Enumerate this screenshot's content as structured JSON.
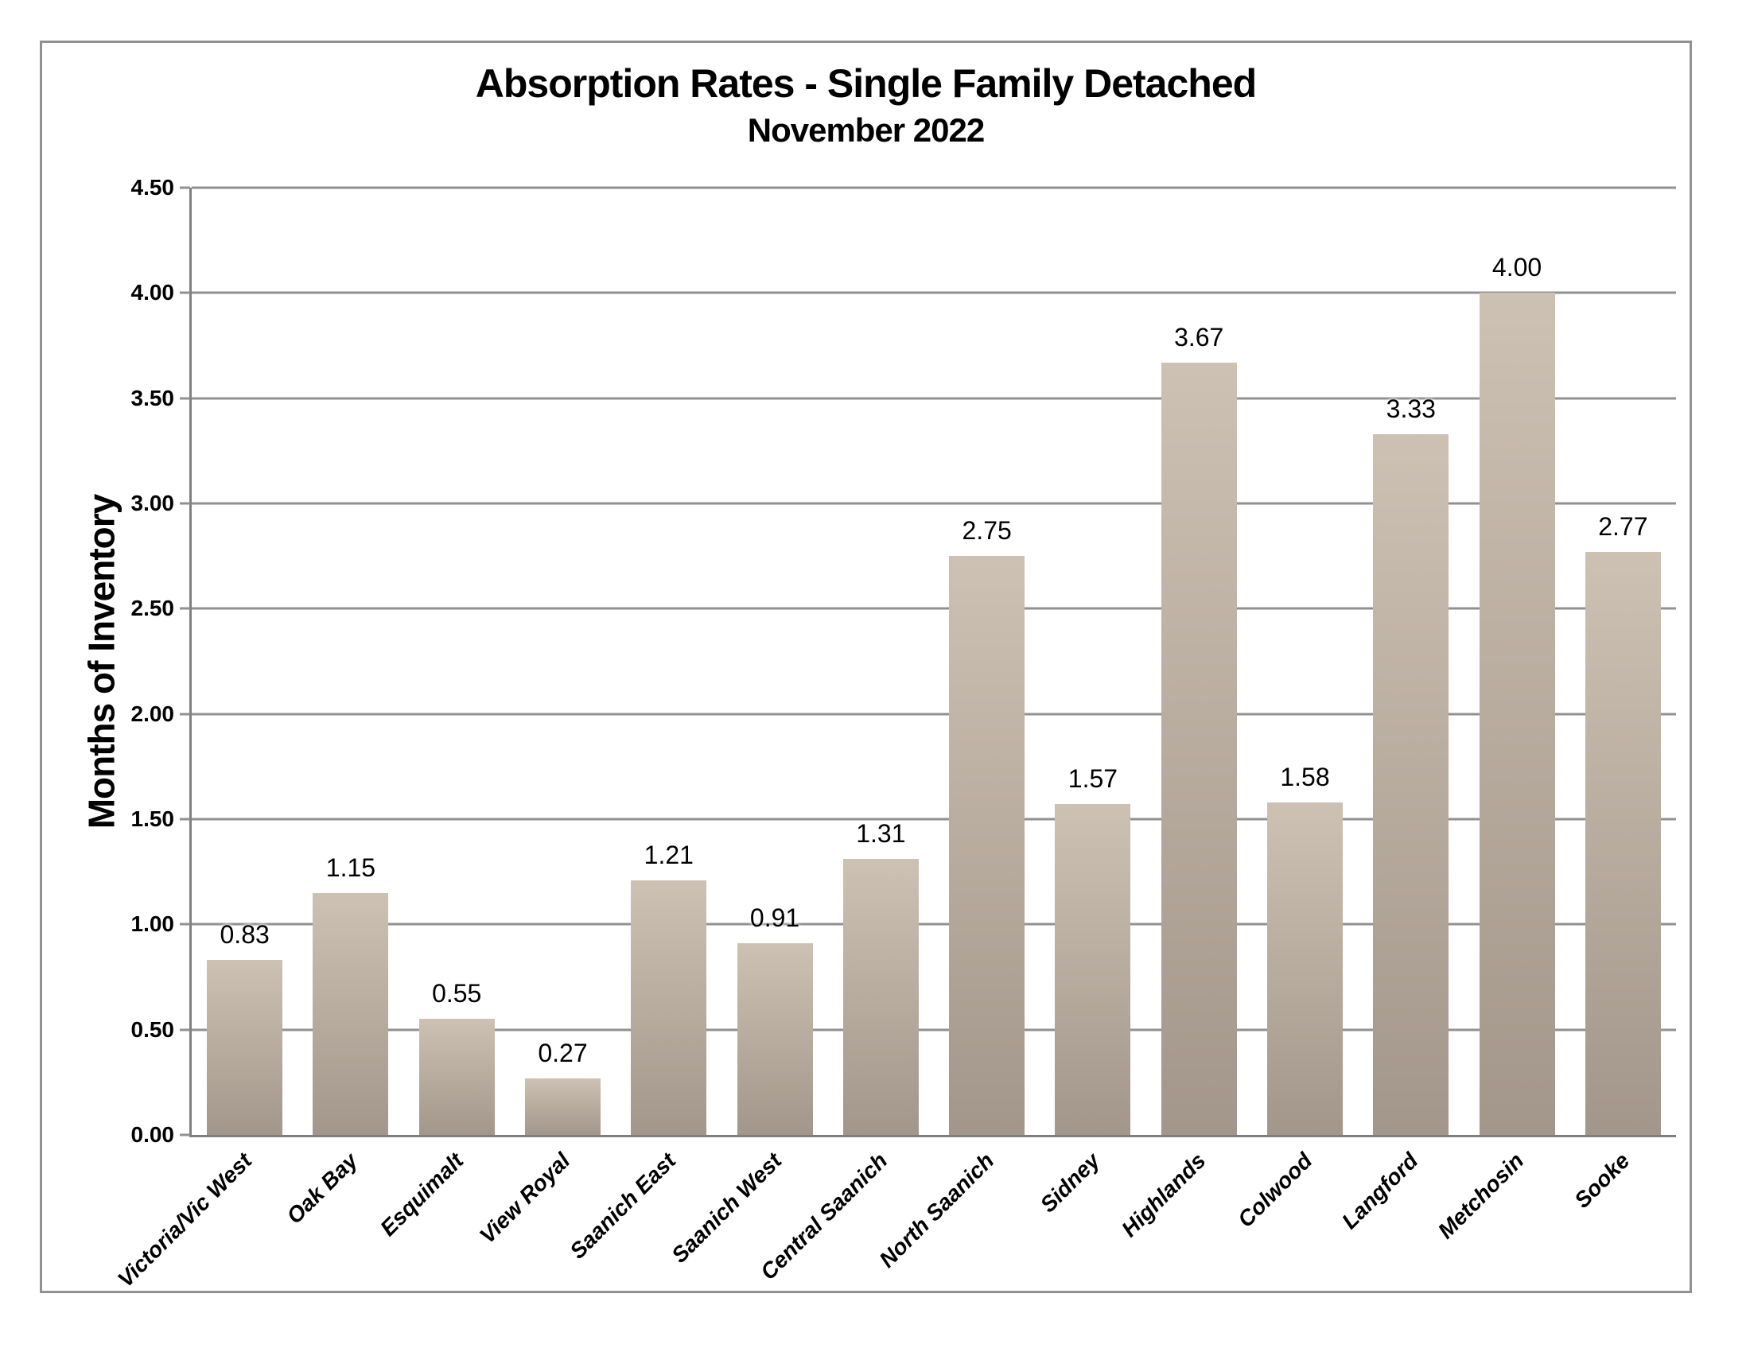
{
  "chart_data": {
    "type": "bar",
    "title": "Absorption Rates - Single Family Detached",
    "subtitle": "November 2022",
    "xlabel": "",
    "ylabel": "Months of Inventory",
    "categories": [
      "Victoria/Vic West",
      "Oak Bay",
      "Esquimalt",
      "View Royal",
      "Saanich East",
      "Saanich West",
      "Central Saanich",
      "North Saanich",
      "Sidney",
      "Highlands",
      "Colwood",
      "Langford",
      "Metchosin",
      "Sooke"
    ],
    "values": [
      0.83,
      1.15,
      0.55,
      0.27,
      1.21,
      0.91,
      1.31,
      2.75,
      1.57,
      3.67,
      1.58,
      3.33,
      4.0,
      2.77
    ],
    "value_labels": [
      "0.83",
      "1.15",
      "0.55",
      "0.27",
      "1.21",
      "0.91",
      "1.31",
      "2.75",
      "1.57",
      "3.67",
      "1.58",
      "3.33",
      "4.00",
      "2.77"
    ],
    "ylim": [
      0,
      4.5
    ],
    "ytick_step": 0.5,
    "ytick_labels": [
      "0.00",
      "0.50",
      "1.00",
      "1.50",
      "2.00",
      "2.50",
      "3.00",
      "3.50",
      "4.00",
      "4.50"
    ],
    "grid": "horizontal gridlines on, vertical off",
    "legend": "none",
    "colors": {
      "bar_top": "#cdc1b4",
      "bar_bottom": "#a3968a",
      "gridline": "#919191",
      "axis": "#7f7f7f",
      "figure_border": "#919191",
      "text": "#000000",
      "background": "#ffffff"
    }
  }
}
